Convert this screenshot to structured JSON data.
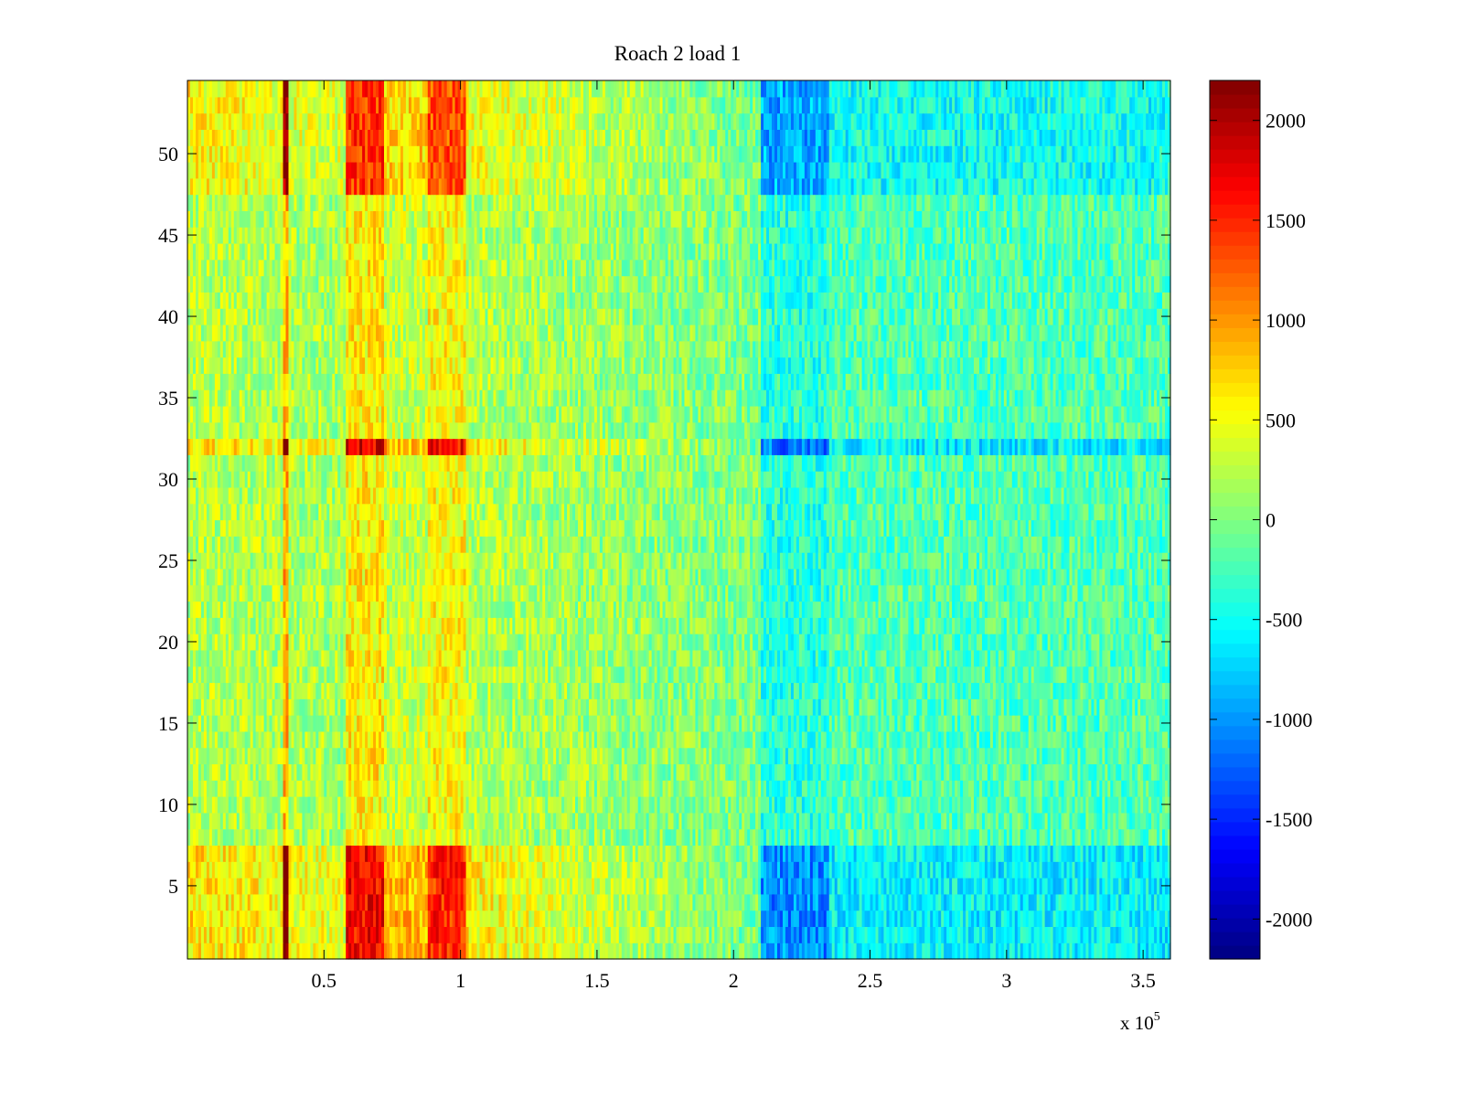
{
  "chart_data": {
    "type": "heatmap",
    "title": "Roach 2 load 1",
    "xlabel": "",
    "ylabel": "",
    "x_exponent_label": "x 10",
    "x_exponent_power": "5",
    "xlim": [
      0,
      3.6
    ],
    "ylim": [
      0.5,
      54.5
    ],
    "x_ticks": [
      0.5,
      1,
      1.5,
      2,
      2.5,
      3,
      3.5
    ],
    "x_tick_labels": [
      "0.5",
      "1",
      "1.5",
      "2",
      "2.5",
      "3",
      "3.5"
    ],
    "y_ticks": [
      5,
      10,
      15,
      20,
      25,
      30,
      35,
      40,
      45,
      50
    ],
    "y_tick_labels": [
      "5",
      "10",
      "15",
      "20",
      "25",
      "30",
      "35",
      "40",
      "45",
      "50"
    ],
    "rows": 54,
    "colorbar": {
      "colormap": "jet",
      "range": [
        -2200,
        2200
      ],
      "ticks": [
        2000,
        1500,
        1000,
        500,
        0,
        -500,
        -1000,
        -1500,
        -2000
      ],
      "tick_labels": [
        "2000",
        "1500",
        "1000",
        "500",
        "0",
        "-500",
        "-1000",
        "-1500",
        "-2000"
      ]
    },
    "features": {
      "x_bands": [
        {
          "x_start": 0.0,
          "x_end": 0.35,
          "value": 500
        },
        {
          "x_start": 0.35,
          "x_end": 0.38,
          "value": 1800
        },
        {
          "x_start": 0.58,
          "x_end": 0.7,
          "value": 1400
        },
        {
          "x_start": 0.88,
          "x_end": 1.0,
          "value": 1300
        },
        {
          "x_start": 2.1,
          "x_end": 2.25,
          "value": -900
        },
        {
          "x_start": 2.25,
          "x_end": 2.35,
          "value": -1100
        }
      ],
      "row_groups": [
        {
          "rows": [
            1,
            7
          ],
          "gain": 1.5
        },
        {
          "rows": [
            32,
            32
          ],
          "gain": 1.6
        },
        {
          "rows": [
            48,
            54
          ],
          "gain": 1.3
        }
      ]
    },
    "grid": false,
    "legend": "none"
  }
}
